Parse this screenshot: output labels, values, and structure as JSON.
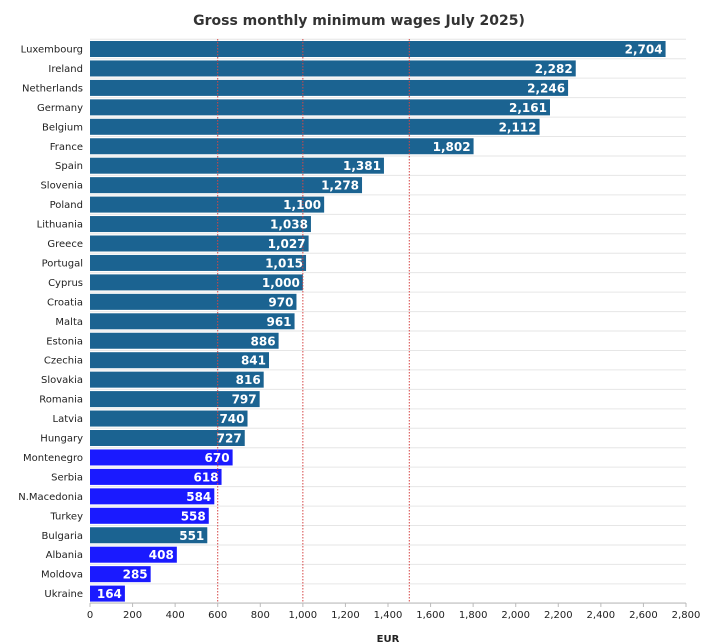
{
  "chart_data": {
    "type": "bar",
    "orientation": "horizontal",
    "title": "Gross monthly minimum wages July 2025)",
    "xlabel": "EUR",
    "ylabel": "",
    "xlim": [
      0,
      2800
    ],
    "xticks": [
      0,
      200,
      400,
      600,
      800,
      1000,
      1200,
      1400,
      1600,
      1800,
      2000,
      2200,
      2400,
      2600,
      2800
    ],
    "xtick_labels": [
      "0",
      "200",
      "400",
      "600",
      "800",
      "1,000",
      "1,200",
      "1,400",
      "1,600",
      "1,800",
      "2,000",
      "2,200",
      "2,400",
      "2,600",
      "2,800"
    ],
    "reference_lines": [
      600,
      1000,
      1500
    ],
    "grid": "horizontal",
    "categories": [
      "Luxembourg",
      "Ireland",
      "Netherlands",
      "Germany",
      "Belgium",
      "France",
      "Spain",
      "Slovenia",
      "Poland",
      "Lithuania",
      "Greece",
      "Portugal",
      "Cyprus",
      "Croatia",
      "Malta",
      "Estonia",
      "Czechia",
      "Slovakia",
      "Romania",
      "Latvia",
      "Hungary",
      "Montenegro",
      "Serbia",
      "N.Macedonia",
      "Turkey",
      "Bulgaria",
      "Albania",
      "Moldova",
      "Ukraine"
    ],
    "values": [
      2704,
      2282,
      2246,
      2161,
      2112,
      1802,
      1381,
      1278,
      1100,
      1038,
      1027,
      1015,
      1000,
      970,
      961,
      886,
      841,
      816,
      797,
      740,
      727,
      670,
      618,
      584,
      558,
      551,
      408,
      285,
      164
    ],
    "value_labels": [
      "2,704",
      "2,282",
      "2,246",
      "2,161",
      "2,112",
      "1,802",
      "1,381",
      "1,278",
      "1,100",
      "1,038",
      "1,027",
      "1,015",
      "1,000",
      "970",
      "961",
      "886",
      "841",
      "816",
      "797",
      "740",
      "727",
      "670",
      "618",
      "584",
      "558",
      "551",
      "408",
      "285",
      "164"
    ],
    "highlighted": [
      false,
      false,
      false,
      false,
      false,
      false,
      false,
      false,
      false,
      false,
      false,
      false,
      false,
      false,
      false,
      false,
      false,
      false,
      false,
      false,
      false,
      true,
      true,
      true,
      true,
      false,
      true,
      true,
      true
    ],
    "colors": {
      "default": "#1b6391",
      "highlight": "#1a1aff",
      "reference_line": "#d64545",
      "grid": "#e6e6e6"
    }
  }
}
